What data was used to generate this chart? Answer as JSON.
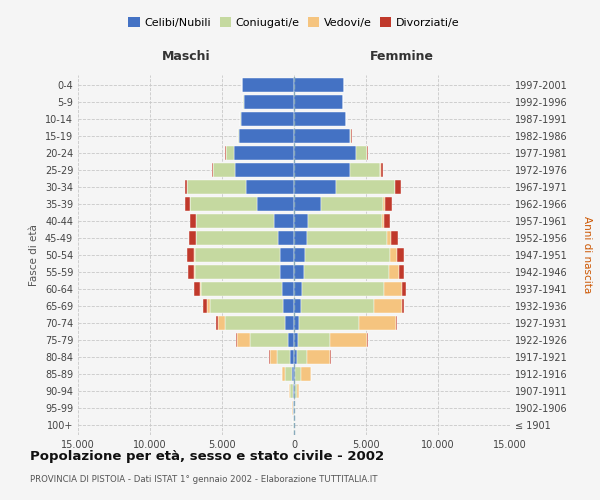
{
  "age_groups": [
    "100+",
    "95-99",
    "90-94",
    "85-89",
    "80-84",
    "75-79",
    "70-74",
    "65-69",
    "60-64",
    "55-59",
    "50-54",
    "45-49",
    "40-44",
    "35-39",
    "30-34",
    "25-29",
    "20-24",
    "15-19",
    "10-14",
    "5-9",
    "0-4"
  ],
  "birth_years": [
    "≤ 1901",
    "1902-1906",
    "1907-1911",
    "1912-1916",
    "1917-1921",
    "1922-1926",
    "1927-1931",
    "1932-1936",
    "1937-1941",
    "1942-1946",
    "1947-1951",
    "1952-1956",
    "1957-1961",
    "1962-1966",
    "1967-1971",
    "1972-1976",
    "1977-1981",
    "1982-1986",
    "1987-1991",
    "1992-1996",
    "1997-2001"
  ],
  "maschi": {
    "celibi": [
      20,
      40,
      80,
      160,
      300,
      450,
      600,
      750,
      850,
      950,
      1000,
      1100,
      1400,
      2600,
      3300,
      4100,
      4200,
      3800,
      3700,
      3500,
      3600
    ],
    "coniugati": [
      15,
      50,
      180,
      450,
      900,
      2600,
      4200,
      5100,
      5600,
      5900,
      5900,
      5700,
      5400,
      4600,
      4100,
      1500,
      550,
      80,
      30,
      10,
      5
    ],
    "vedovi": [
      3,
      15,
      70,
      200,
      500,
      900,
      450,
      200,
      100,
      70,
      50,
      30,
      25,
      15,
      8,
      3,
      2,
      1,
      0,
      0,
      0
    ],
    "divorziati": [
      1,
      3,
      8,
      15,
      25,
      70,
      180,
      280,
      380,
      420,
      480,
      430,
      380,
      320,
      180,
      90,
      40,
      8,
      3,
      1,
      0
    ]
  },
  "femmine": {
    "nubili": [
      8,
      25,
      50,
      100,
      180,
      280,
      380,
      480,
      580,
      680,
      780,
      880,
      980,
      1900,
      2900,
      3900,
      4300,
      3900,
      3600,
      3400,
      3500
    ],
    "coniugate": [
      8,
      30,
      130,
      380,
      750,
      2200,
      4100,
      5100,
      5700,
      5900,
      5900,
      5600,
      5100,
      4300,
      4100,
      2100,
      750,
      80,
      30,
      10,
      5
    ],
    "vedove": [
      4,
      25,
      190,
      700,
      1600,
      2600,
      2600,
      1900,
      1200,
      700,
      480,
      280,
      180,
      90,
      40,
      15,
      8,
      3,
      1,
      0,
      0
    ],
    "divorziate": [
      1,
      4,
      8,
      15,
      25,
      70,
      90,
      180,
      320,
      380,
      480,
      430,
      380,
      500,
      380,
      180,
      70,
      12,
      4,
      1,
      0
    ]
  },
  "colors": {
    "celibi_nubili": "#4472C4",
    "coniugati_e": "#C5D9A0",
    "vedovi_e": "#F5C47F",
    "divorziati_e": "#C0392B"
  },
  "xlim": 15000,
  "title": "Popolazione per età, sesso e stato civile - 2002",
  "subtitle": "PROVINCIA DI PISTOIA - Dati ISTAT 1° gennaio 2002 - Elaborazione TUTTITALIA.IT",
  "ylabel_left": "Fasce di età",
  "ylabel_right": "Anni di nascita",
  "xlabel_left": "Maschi",
  "xlabel_right": "Femmine",
  "background_color": "#f5f5f5",
  "gridline_color": "#c8c8c8"
}
